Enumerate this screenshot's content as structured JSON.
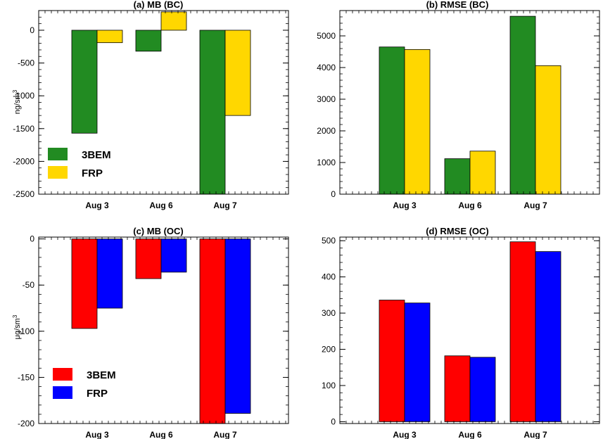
{
  "chart_data": [
    {
      "type": "bar",
      "title": "(a) MB (BC)",
      "ylabel": "ng/sm",
      "ylabel_sup": "3",
      "categories": [
        "Aug 3",
        "Aug 6",
        "Aug 7"
      ],
      "series": [
        {
          "name": "3BEM",
          "color": "#228B22",
          "values": [
            -1570,
            -320,
            -2500
          ]
        },
        {
          "name": "FRP",
          "color": "#FFD700",
          "values": [
            -190,
            280,
            -1300
          ]
        }
      ],
      "ylim": [
        -2500,
        300
      ],
      "yticks": [
        0,
        -500,
        -1000,
        -1500,
        -2000,
        -2500
      ],
      "legend_position": "bottom-left",
      "grid": false
    },
    {
      "type": "bar",
      "title": "(b) RMSE (BC)",
      "categories": [
        "Aug 3",
        "Aug 6",
        "Aug 7"
      ],
      "series": [
        {
          "name": "3BEM",
          "color": "#228B22",
          "values": [
            4650,
            1120,
            5620
          ]
        },
        {
          "name": "FRP",
          "color": "#FFD700",
          "values": [
            4570,
            1360,
            4060
          ]
        }
      ],
      "ylim": [
        0,
        5800
      ],
      "yticks": [
        0,
        1000,
        2000,
        3000,
        4000,
        5000
      ],
      "grid": false
    },
    {
      "type": "bar",
      "title": "(c) MB (OC)",
      "ylabel": "μg/sm",
      "ylabel_sup": "3",
      "categories": [
        "Aug 3",
        "Aug 6",
        "Aug 7"
      ],
      "series": [
        {
          "name": "3BEM",
          "color": "#FF0000",
          "values": [
            -97,
            -43,
            -200
          ]
        },
        {
          "name": "FRP",
          "color": "#0000FF",
          "values": [
            -75,
            -36,
            -189
          ]
        }
      ],
      "ylim": [
        -200,
        2
      ],
      "yticks": [
        0,
        -50,
        -100,
        -150,
        -200
      ],
      "legend_position": "bottom-left",
      "grid": false
    },
    {
      "type": "bar",
      "title": "(d) RMSE (OC)",
      "categories": [
        "Aug 3",
        "Aug 6",
        "Aug 7"
      ],
      "series": [
        {
          "name": "3BEM",
          "color": "#FF0000",
          "values": [
            336,
            182,
            497
          ]
        },
        {
          "name": "FRP",
          "color": "#0000FF",
          "values": [
            328,
            178,
            470
          ]
        }
      ],
      "ylim": [
        -5,
        510
      ],
      "yticks": [
        0,
        100,
        200,
        300,
        400,
        500
      ],
      "grid": false
    }
  ]
}
